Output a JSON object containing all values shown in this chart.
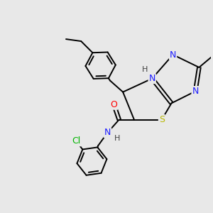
{
  "background_color": "#e8e8e8",
  "atom_colors": {
    "C": "#000000",
    "N": "#1a1aff",
    "O": "#ff0000",
    "S": "#b8b800",
    "Cl": "#00b400",
    "H": "#404040"
  },
  "bond_color": "#000000",
  "bond_width": 1.4,
  "figsize": [
    3.0,
    3.0
  ],
  "dpi": 100
}
